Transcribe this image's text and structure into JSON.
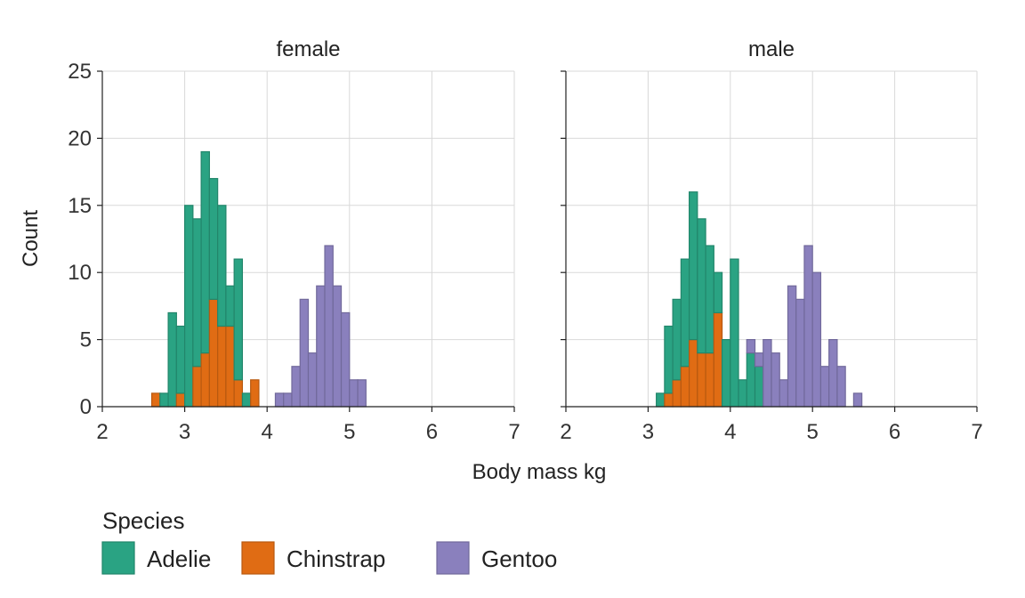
{
  "chart_data": {
    "type": "bar",
    "subtype": "faceted stacked histogram",
    "xlabel": "Body mass kg",
    "ylabel": "Count",
    "xlim": [
      2,
      7
    ],
    "ylim": [
      0,
      25
    ],
    "xticks": [
      2,
      3,
      4,
      5,
      6,
      7
    ],
    "yticks": [
      0,
      5,
      10,
      15,
      20,
      25
    ],
    "grid": true,
    "legend": {
      "title": "Species",
      "placement": "bottom-left",
      "entries": [
        "Adelie",
        "Chinstrap",
        "Gentoo"
      ]
    },
    "colors": {
      "Adelie": "#2aa383",
      "Chinstrap": "#e06c14",
      "Gentoo": "#8a80bd"
    },
    "bins": {
      "start": 2.1,
      "width": 0.1,
      "centers": [
        2.15,
        2.25,
        2.35,
        2.45,
        2.55,
        2.65,
        2.75,
        2.85,
        2.95,
        3.05,
        3.15,
        3.25,
        3.35,
        3.45,
        3.55,
        3.65,
        3.75,
        3.85,
        3.95,
        4.05,
        4.15,
        4.25,
        4.35,
        4.45,
        4.55,
        4.65,
        4.75,
        4.85,
        4.95,
        5.05,
        5.15,
        5.25,
        5.35,
        5.45,
        5.55,
        5.65,
        5.75,
        5.85,
        5.95,
        6.05,
        6.15,
        6.25,
        6.35,
        6.45,
        6.55,
        6.65,
        6.75,
        6.85,
        6.95
      ]
    },
    "panels": [
      {
        "title": "female",
        "series": [
          {
            "name": "Chinstrap",
            "values": [
              0,
              0,
              0,
              0,
              0,
              1,
              0,
              0,
              1,
              0,
              3,
              4,
              8,
              6,
              6,
              2,
              0,
              2,
              0,
              0,
              0,
              0,
              0,
              0,
              0,
              0,
              0,
              0,
              0,
              0,
              0,
              0,
              0,
              0,
              0,
              0,
              0,
              0,
              0,
              0,
              0,
              0,
              0,
              0,
              0,
              0,
              0,
              0,
              0
            ]
          },
          {
            "name": "Adelie",
            "values": [
              0,
              0,
              0,
              0,
              0,
              0,
              1,
              7,
              5,
              15,
              11,
              15,
              9,
              9,
              3,
              9,
              1,
              0,
              0,
              0,
              0,
              0,
              0,
              0,
              0,
              0,
              0,
              0,
              0,
              0,
              0,
              0,
              0,
              0,
              0,
              0,
              0,
              0,
              0,
              0,
              0,
              0,
              0,
              0,
              0,
              0,
              0,
              0,
              0
            ]
          },
          {
            "name": "Gentoo",
            "values": [
              0,
              0,
              0,
              0,
              0,
              0,
              0,
              0,
              0,
              0,
              0,
              0,
              0,
              0,
              0,
              0,
              0,
              0,
              0,
              0,
              1,
              1,
              3,
              8,
              4,
              9,
              12,
              9,
              7,
              2,
              2,
              0,
              0,
              0,
              0,
              0,
              0,
              0,
              0,
              0,
              0,
              0,
              0,
              0,
              0,
              0,
              0,
              0,
              0
            ]
          }
        ]
      },
      {
        "title": "male",
        "series": [
          {
            "name": "Chinstrap",
            "values": [
              0,
              0,
              0,
              0,
              0,
              0,
              0,
              0,
              0,
              0,
              0,
              1,
              2,
              3,
              5,
              4,
              4,
              7,
              0,
              0,
              0,
              0,
              0,
              0,
              0,
              0,
              0,
              0,
              0,
              0,
              0,
              0,
              0,
              0,
              0,
              0,
              0,
              0,
              0,
              0,
              0,
              0,
              0,
              0,
              0,
              0,
              0,
              0,
              0
            ]
          },
          {
            "name": "Adelie",
            "values": [
              0,
              0,
              0,
              0,
              0,
              0,
              0,
              0,
              0,
              0,
              1,
              5,
              6,
              8,
              11,
              10,
              8,
              3,
              5,
              11,
              2,
              4,
              3,
              0,
              0,
              0,
              0,
              0,
              0,
              0,
              0,
              0,
              0,
              0,
              0,
              0,
              0,
              0,
              0,
              0,
              0,
              0,
              0,
              0,
              0,
              0,
              0,
              0,
              0
            ]
          },
          {
            "name": "Gentoo",
            "values": [
              0,
              0,
              0,
              0,
              0,
              0,
              0,
              0,
              0,
              0,
              0,
              0,
              0,
              0,
              0,
              0,
              0,
              0,
              0,
              0,
              0,
              1,
              1,
              5,
              4,
              2,
              9,
              8,
              12,
              10,
              3,
              5,
              3,
              0,
              1,
              0,
              0,
              0,
              0,
              0,
              0,
              0,
              0,
              0,
              0,
              0,
              0,
              0,
              0
            ]
          }
        ]
      }
    ]
  }
}
